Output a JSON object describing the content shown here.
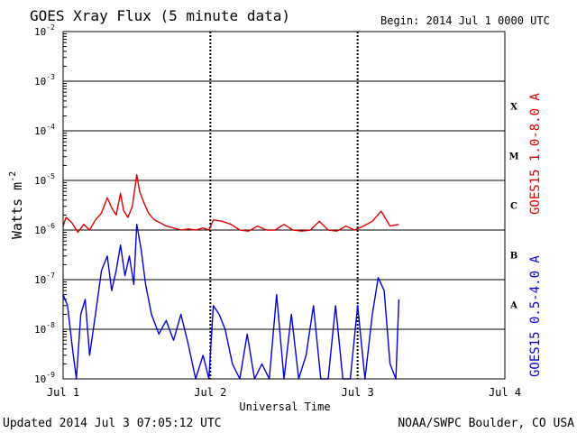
{
  "chart_data": {
    "type": "line",
    "title": "GOES Xray Flux (5 minute data)",
    "begin_label": "Begin:  2014 Jul 1 0000 UTC",
    "xlabel": "Universal Time",
    "ylabel_base": "Watts m",
    "ylabel_exp": "-2",
    "y_scale": "log",
    "ylim": [
      1e-09,
      0.01
    ],
    "y_ticks": [
      {
        "exp": "-2",
        "value": 0.01
      },
      {
        "exp": "-3",
        "value": 0.001
      },
      {
        "exp": "-4",
        "value": 0.0001
      },
      {
        "exp": "-5",
        "value": 1e-05
      },
      {
        "exp": "-6",
        "value": 1e-06
      },
      {
        "exp": "-7",
        "value": 1e-07
      },
      {
        "exp": "-8",
        "value": 1e-08
      },
      {
        "exp": "-9",
        "value": 1e-09
      }
    ],
    "xlim": [
      0,
      3
    ],
    "x_unit": "days since 2014 Jul 1 0000 UTC",
    "x_ticks": [
      {
        "label": "Jul 1",
        "value": 0
      },
      {
        "label": "Jul 2",
        "value": 1
      },
      {
        "label": "Jul 3",
        "value": 2
      },
      {
        "label": "Jul 4",
        "value": 3
      }
    ],
    "flare_classes": [
      {
        "label": "X",
        "value": 0.000316
      },
      {
        "label": "M",
        "value": 3.16e-05
      },
      {
        "label": "C",
        "value": 3.16e-06
      },
      {
        "label": "B",
        "value": 3.16e-07
      },
      {
        "label": "A",
        "value": 3.16e-08
      }
    ],
    "series": [
      {
        "name": "GOES15 1.0-8.0 A",
        "color": "#dd0000",
        "x": [
          0.0,
          0.02,
          0.06,
          0.1,
          0.14,
          0.18,
          0.22,
          0.26,
          0.3,
          0.33,
          0.36,
          0.39,
          0.41,
          0.44,
          0.47,
          0.5,
          0.52,
          0.55,
          0.58,
          0.62,
          0.66,
          0.7,
          0.75,
          0.8,
          0.85,
          0.9,
          0.95,
          0.99,
          1.02,
          1.08,
          1.14,
          1.2,
          1.26,
          1.32,
          1.38,
          1.44,
          1.5,
          1.56,
          1.62,
          1.68,
          1.74,
          1.8,
          1.86,
          1.92,
          1.98,
          2.04,
          2.1,
          2.16,
          2.22,
          2.28
        ],
        "y": [
          1.2e-06,
          1.8e-06,
          1.4e-06,
          9e-07,
          1.3e-06,
          1e-06,
          1.6e-06,
          2.2e-06,
          4.5e-06,
          2.8e-06,
          2e-06,
          5.5e-06,
          2.5e-06,
          1.8e-06,
          3e-06,
          1.3e-05,
          6e-06,
          3.5e-06,
          2.2e-06,
          1.6e-06,
          1.4e-06,
          1.2e-06,
          1.1e-06,
          1e-06,
          1.05e-06,
          1e-06,
          1.1e-06,
          1e-06,
          1.6e-06,
          1.5e-06,
          1.3e-06,
          1e-06,
          9.5e-07,
          1.2e-06,
          1e-06,
          1e-06,
          1.3e-06,
          1e-06,
          9.5e-07,
          1e-06,
          1.5e-06,
          1e-06,
          9.5e-07,
          1.2e-06,
          1e-06,
          1.2e-06,
          1.5e-06,
          2.4e-06,
          1.2e-06,
          1.3e-06
        ]
      },
      {
        "name": "GOES15 0.5-4.0 A",
        "color": "#0000dd",
        "x": [
          0.0,
          0.03,
          0.06,
          0.09,
          0.12,
          0.15,
          0.18,
          0.22,
          0.26,
          0.3,
          0.33,
          0.36,
          0.39,
          0.42,
          0.45,
          0.48,
          0.5,
          0.53,
          0.56,
          0.6,
          0.65,
          0.7,
          0.75,
          0.8,
          0.85,
          0.9,
          0.95,
          0.99,
          1.02,
          1.06,
          1.1,
          1.15,
          1.2,
          1.25,
          1.3,
          1.35,
          1.4,
          1.45,
          1.5,
          1.55,
          1.6,
          1.65,
          1.7,
          1.75,
          1.8,
          1.85,
          1.9,
          1.95,
          2.0,
          2.05,
          2.1,
          2.14,
          2.18,
          2.22,
          2.26,
          2.28
        ],
        "y": [
          5e-08,
          3e-08,
          5e-09,
          1e-09,
          2e-08,
          4e-08,
          3e-09,
          2e-08,
          1.5e-07,
          3e-07,
          6e-08,
          1.5e-07,
          5e-07,
          1.2e-07,
          3e-07,
          8e-08,
          1.3e-06,
          4e-07,
          8e-08,
          2e-08,
          8e-09,
          1.5e-08,
          6e-09,
          2e-08,
          5e-09,
          1e-09,
          3e-09,
          1e-09,
          3e-08,
          2e-08,
          1e-08,
          2e-09,
          1e-09,
          8e-09,
          1e-09,
          2e-09,
          1e-09,
          5e-08,
          1e-09,
          2e-08,
          1e-09,
          3e-09,
          3e-08,
          1e-09,
          1e-09,
          3e-08,
          1e-09,
          1e-09,
          3e-08,
          1e-09,
          2e-08,
          1.1e-07,
          6e-08,
          2e-09,
          1e-09,
          4e-08
        ]
      }
    ],
    "grid": true
  },
  "footer": {
    "updated": "Updated 2014 Jul  3 07:05:12 UTC",
    "credit": "NOAA/SWPC Boulder, CO USA"
  }
}
